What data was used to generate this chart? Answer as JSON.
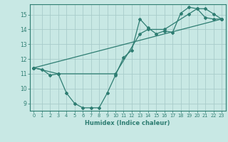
{
  "xlabel": "Humidex (Indice chaleur)",
  "xlim": [
    -0.5,
    23.5
  ],
  "ylim": [
    8.5,
    15.7
  ],
  "yticks": [
    9,
    10,
    11,
    12,
    13,
    14,
    15
  ],
  "xticks": [
    0,
    1,
    2,
    3,
    4,
    5,
    6,
    7,
    8,
    9,
    10,
    11,
    12,
    13,
    14,
    15,
    16,
    17,
    18,
    19,
    20,
    21,
    22,
    23
  ],
  "bg_color": "#c8e8e4",
  "grid_color": "#a8ccca",
  "line_color": "#2e7d72",
  "curves": [
    {
      "x": [
        0,
        1,
        2,
        3,
        4,
        5,
        6,
        7,
        8,
        9,
        10,
        11,
        12,
        13,
        14,
        15,
        16,
        17,
        18,
        19,
        20,
        21,
        22,
        23
      ],
      "y": [
        11.4,
        11.3,
        10.9,
        11.0,
        9.7,
        9.0,
        8.7,
        8.7,
        8.7,
        9.7,
        10.9,
        12.1,
        12.6,
        14.7,
        14.1,
        13.7,
        13.9,
        13.8,
        15.1,
        15.5,
        15.4,
        14.8,
        14.7,
        14.7
      ]
    },
    {
      "x": [
        0,
        3,
        10,
        13,
        14,
        16,
        19,
        20,
        21,
        22,
        23
      ],
      "y": [
        11.4,
        11.0,
        11.0,
        13.7,
        14.0,
        14.0,
        15.05,
        15.4,
        15.4,
        15.05,
        14.7
      ]
    },
    {
      "x": [
        0,
        23
      ],
      "y": [
        11.4,
        14.7
      ]
    }
  ]
}
